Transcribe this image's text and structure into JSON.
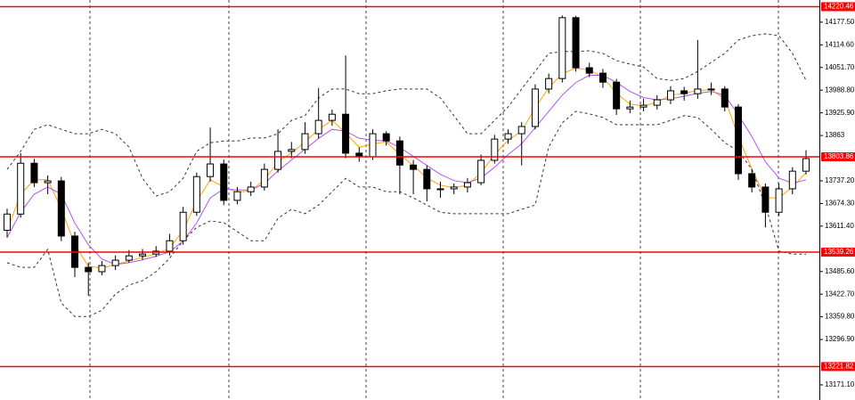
{
  "chart_data": {
    "type": "candlestick",
    "ylim": [
      13129,
      14239
    ],
    "yticks": [
      {
        "value": 14177.5,
        "label": "14177.50"
      },
      {
        "value": 14114.6,
        "label": "14114.60"
      },
      {
        "value": 14051.7,
        "label": "14051.70"
      },
      {
        "value": 13988.8,
        "label": "13988.80"
      },
      {
        "value": 13925.9,
        "label": "13925.90"
      },
      13863,
      {
        "value": 13737.2,
        "label": "13737.20"
      },
      {
        "value": 13674.3,
        "label": "13674.30"
      },
      {
        "value": 13611.4,
        "label": "13611.40"
      },
      {
        "value": 13485.6,
        "label": "13485.60"
      },
      {
        "value": 13422.7,
        "label": "13422.70"
      },
      {
        "value": 13359.8,
        "label": "13359.80"
      },
      {
        "value": 13296.9,
        "label": "13296.90"
      },
      {
        "value": 13171.1,
        "label": "13171.10"
      }
    ],
    "up_color": "#ffffff",
    "down_color": "#000000",
    "open": [
      13600,
      13645,
      13786,
      13732,
      13737,
      13584,
      13497,
      13485,
      13502,
      13517,
      13529,
      13534,
      13542,
      13571,
      13650,
      13749,
      13784,
      13683,
      13707,
      13720,
      13769,
      13819,
      13824,
      13868,
      13905,
      13922,
      13814,
      13804,
      13868,
      13848,
      13781,
      13769,
      13715,
      13715,
      13720,
      13732,
      13794,
      13853,
      13868,
      13888,
      13992,
      14021,
      14190,
      14051,
      14036,
      14011,
      13937,
      13942,
      13947,
      13962,
      13987,
      13979,
      13992,
      13992,
      13942,
      13757,
      13720,
      13650,
      13715,
      13764
    ],
    "high": [
      13660,
      13814,
      13798,
      13752,
      13748,
      13596,
      13510,
      13515,
      13530,
      13545,
      13548,
      13556,
      13590,
      13665,
      13760,
      13885,
      13796,
      13720,
      13735,
      13785,
      13880,
      13845,
      13900,
      13995,
      13935,
      14085,
      13830,
      13880,
      13875,
      13860,
      13795,
      13780,
      13735,
      13730,
      13745,
      13810,
      13865,
      13880,
      13900,
      14005,
      14035,
      14196,
      14195,
      14065,
      14048,
      14020,
      13960,
      13965,
      13975,
      14000,
      13998,
      14128,
      14010,
      14000,
      13950,
      13770,
      13730,
      13730,
      13775,
      13822
    ],
    "low": [
      13580,
      13635,
      13720,
      13700,
      13570,
      13470,
      13418,
      13475,
      13490,
      13510,
      13518,
      13526,
      13530,
      13560,
      13640,
      13735,
      13670,
      13672,
      13695,
      13710,
      13760,
      13800,
      13812,
      13855,
      13890,
      13800,
      13790,
      13795,
      13835,
      13700,
      13700,
      13680,
      13690,
      13700,
      13705,
      13725,
      13785,
      13840,
      13780,
      13880,
      13980,
      14010,
      14040,
      14025,
      13995,
      13920,
      13925,
      13930,
      13935,
      13950,
      13960,
      13965,
      13975,
      13930,
      13740,
      13705,
      13608,
      13640,
      13700,
      13755
    ],
    "close": [
      13645,
      13786,
      13732,
      13737,
      13584,
      13497,
      13485,
      13502,
      13517,
      13529,
      13534,
      13542,
      13571,
      13650,
      13749,
      13784,
      13683,
      13707,
      13720,
      13769,
      13819,
      13824,
      13868,
      13905,
      13922,
      13814,
      13804,
      13868,
      13848,
      13781,
      13769,
      13715,
      13715,
      13720,
      13732,
      13794,
      13853,
      13868,
      13888,
      13992,
      14021,
      14190,
      14051,
      14036,
      14011,
      13937,
      13942,
      13947,
      13962,
      13987,
      13979,
      13992,
      13992,
      13942,
      13757,
      13720,
      13650,
      13715,
      13764,
      13799
    ],
    "series": [
      {
        "color": "#ffa500",
        "dashed": false,
        "values": [
          13600,
          13700,
          13740,
          13740,
          13660,
          13560,
          13500,
          13495,
          13505,
          13515,
          13525,
          13535,
          13550,
          13600,
          13680,
          13740,
          13720,
          13705,
          13710,
          13740,
          13790,
          13815,
          13845,
          13880,
          13905,
          13870,
          13830,
          13840,
          13845,
          13810,
          13780,
          13745,
          13725,
          13718,
          13725,
          13760,
          13810,
          13850,
          13875,
          13940,
          13995,
          14035,
          14050,
          14045,
          14025,
          13980,
          13950,
          13945,
          13955,
          13975,
          13980,
          13988,
          13990,
          13965,
          13860,
          13770,
          13690,
          13690,
          13720,
          13760
        ]
      },
      {
        "color": "#b455e8",
        "dashed": false,
        "values": [
          13580,
          13650,
          13700,
          13720,
          13700,
          13620,
          13560,
          13520,
          13505,
          13510,
          13518,
          13528,
          13540,
          13570,
          13620,
          13690,
          13715,
          13712,
          13712,
          13730,
          13765,
          13795,
          13825,
          13855,
          13880,
          13875,
          13855,
          13850,
          13848,
          13830,
          13805,
          13780,
          13755,
          13738,
          13732,
          13745,
          13775,
          13810,
          13840,
          13885,
          13930,
          13975,
          14010,
          14030,
          14030,
          14010,
          13985,
          13968,
          13962,
          13965,
          13972,
          13980,
          13985,
          13975,
          13920,
          13860,
          13790,
          13745,
          13730,
          13740
        ]
      },
      {
        "color": "#333333",
        "dashed": true,
        "values": [
          13769,
          13819,
          13880,
          13893,
          13880,
          13868,
          13868,
          13880,
          13868,
          13831,
          13744,
          13695,
          13707,
          13744,
          13819,
          13843,
          13848,
          13848,
          13856,
          13856,
          13868,
          13905,
          13918,
          13967,
          13992,
          13992,
          13979,
          13979,
          13987,
          13992,
          13992,
          13992,
          13967,
          13918,
          13868,
          13868,
          13905,
          13942,
          13992,
          14041,
          14091,
          14096,
          14096,
          14098,
          14091,
          14071,
          14061,
          14053,
          14021,
          14016,
          14021,
          14041,
          14066,
          14091,
          14128,
          14140,
          14145,
          14140,
          14091,
          14016
        ]
      },
      {
        "color": "#333333",
        "dashed": true,
        "values": [
          13510,
          13497,
          13497,
          13547,
          13398,
          13361,
          13361,
          13378,
          13423,
          13448,
          13460,
          13485,
          13522,
          13571,
          13608,
          13626,
          13621,
          13596,
          13571,
          13571,
          13633,
          13658,
          13646,
          13670,
          13707,
          13744,
          13720,
          13720,
          13707,
          13707,
          13690,
          13670,
          13650,
          13646,
          13646,
          13646,
          13646,
          13646,
          13658,
          13670,
          13831,
          13898,
          13930,
          13923,
          13913,
          13893,
          13893,
          13893,
          13893,
          13905,
          13918,
          13913,
          13880,
          13843,
          13819,
          13769,
          13670,
          13542,
          13534,
          13534
        ]
      }
    ],
    "levels": [
      {
        "value": 14220.46,
        "color": "#ff0000"
      },
      {
        "value": 13803.86,
        "color": "#ff0000"
      },
      {
        "value": 13539.26,
        "color": "#ff0000"
      },
      {
        "value": 13221.82,
        "color": "#ff0000"
      }
    ]
  }
}
